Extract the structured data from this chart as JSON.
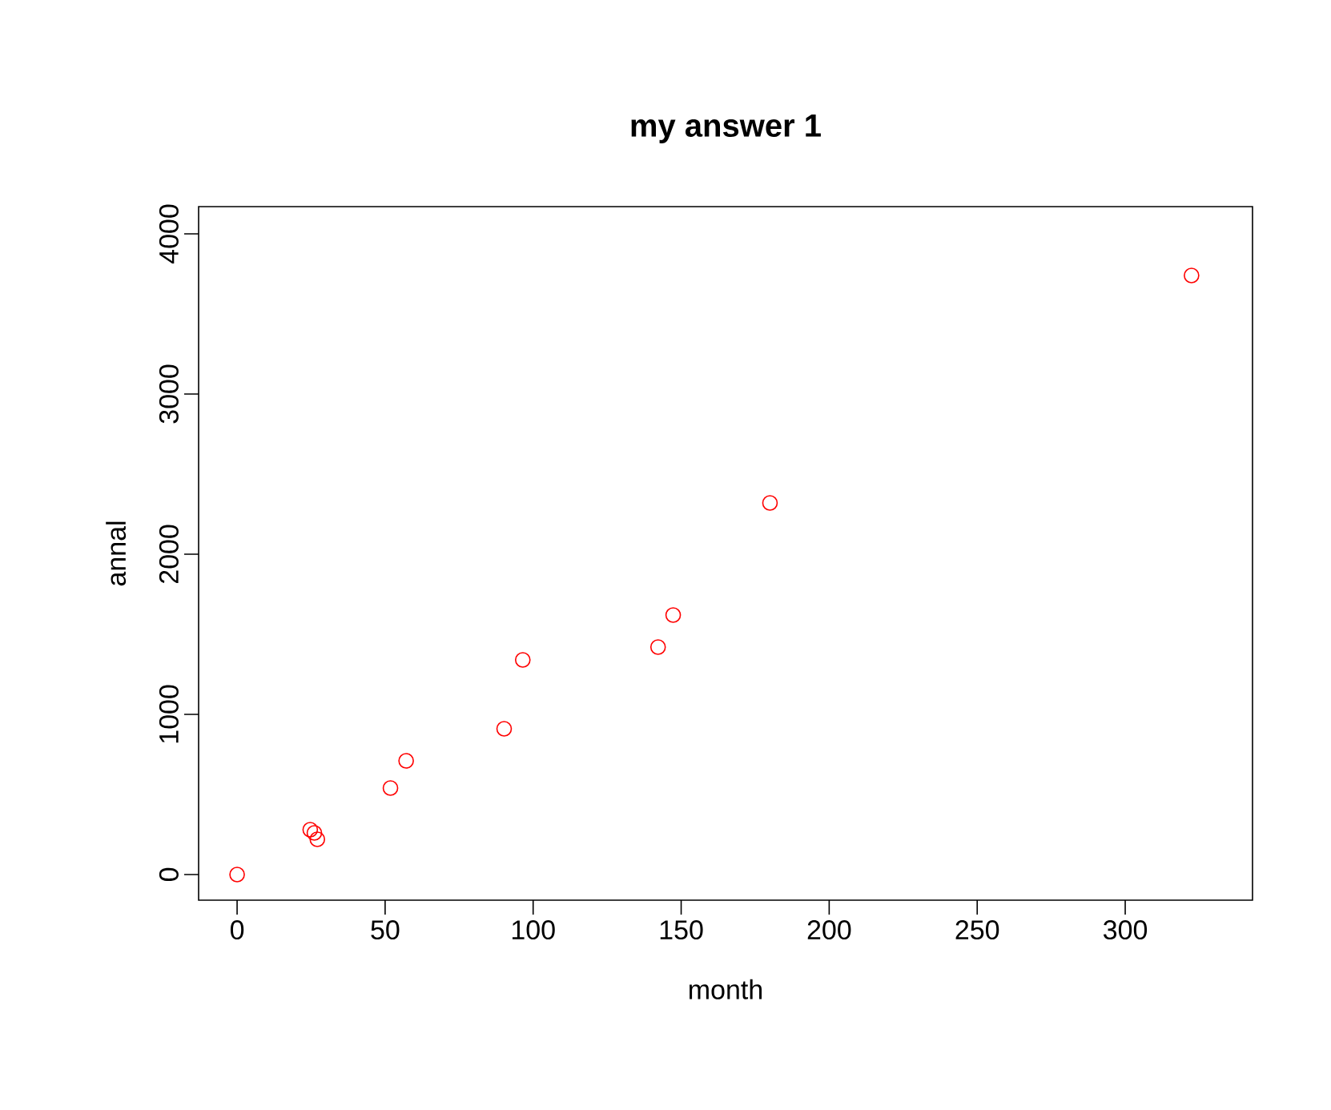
{
  "chart_data": {
    "type": "scatter",
    "title": "my answer 1",
    "xlabel": "month",
    "ylabel": "annal",
    "x": [
      0,
      24.7,
      26.1,
      27.1,
      51.8,
      57.1,
      90.2,
      96.5,
      142.2,
      147.3,
      180,
      322.4
    ],
    "values": [
      0,
      280,
      260,
      220,
      540,
      710,
      910,
      1340,
      1420,
      1620,
      2320,
      3740
    ],
    "color": "#ff0000",
    "marker": "circle",
    "xlim": [
      -13,
      343
    ],
    "ylim": [
      -160,
      4170
    ],
    "xticks": [
      0,
      50,
      100,
      150,
      200,
      250,
      300
    ],
    "yticks": [
      0,
      1000,
      2000,
      3000,
      4000
    ]
  }
}
